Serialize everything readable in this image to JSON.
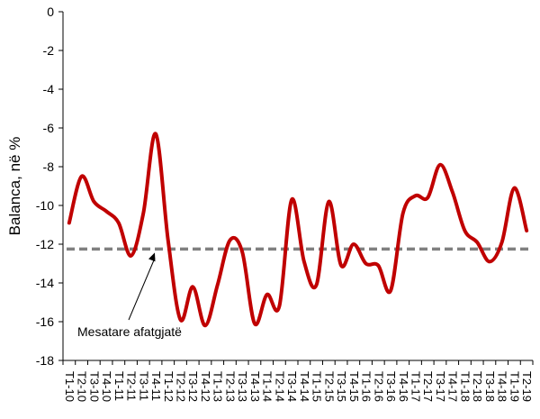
{
  "chart_data": {
    "type": "line",
    "ylabel": "Balanca, në %",
    "xlabel": "",
    "title": "",
    "ylim": [
      -18,
      0
    ],
    "yticks": [
      0,
      -2,
      -4,
      -6,
      -8,
      -10,
      -12,
      -14,
      -16,
      -18
    ],
    "categories": [
      "T1-10",
      "T2-10",
      "T3-10",
      "T4-10",
      "T1-11",
      "T2-11",
      "T3-11",
      "T4-11",
      "T1-12",
      "T2-12",
      "T3-12",
      "T4-12",
      "T1-13",
      "T2-13",
      "T3-13",
      "T4-13",
      "T1-14",
      "T2-14",
      "T3-14",
      "T4-14",
      "T1-15",
      "T2-15",
      "T3-15",
      "T4-15",
      "T1-16",
      "T2-16",
      "T3-16",
      "T4-16",
      "T1-17",
      "T2-17",
      "T3-17",
      "T4-17",
      "T1-18",
      "T2-18",
      "T3-18",
      "T4-18",
      "T1-19",
      "T2-19"
    ],
    "series": [
      {
        "name": "",
        "color": "#c00000",
        "values": [
          -10.9,
          -8.5,
          -9.8,
          -10.3,
          -10.9,
          -12.6,
          -10.4,
          -6.3,
          -11.8,
          -15.9,
          -14.2,
          -16.2,
          -14.1,
          -11.8,
          -12.4,
          -16.1,
          -14.6,
          -15.2,
          -9.7,
          -12.9,
          -14.1,
          -9.8,
          -13.1,
          -12.0,
          -13.0,
          -13.1,
          -14.4,
          -10.4,
          -9.5,
          -9.6,
          -7.9,
          -9.3,
          -11.3,
          -11.9,
          -12.9,
          -11.9,
          -9.1,
          -11.3
        ]
      }
    ],
    "reference_line": {
      "value": -12.25,
      "color": "#808080",
      "label": "Mesatare afatgjatë"
    },
    "grid": false,
    "legend": "none"
  }
}
